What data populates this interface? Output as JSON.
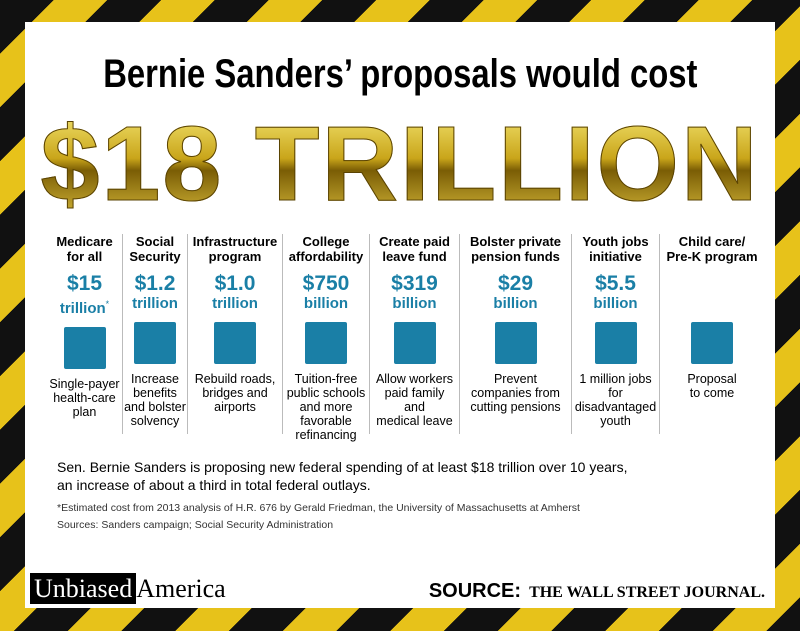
{
  "header": {
    "title": "Bernie Sanders’ proposals would cost",
    "headline": "$18 TRILLION"
  },
  "columns": [
    {
      "heading": [
        "Medicare",
        "for all"
      ],
      "amount": "$15",
      "unit": "trillion",
      "note": "*",
      "description": [
        "Single-payer",
        "health-care",
        "plan"
      ]
    },
    {
      "heading": [
        "Social",
        "Security"
      ],
      "amount": "$1.2",
      "unit": "trillion",
      "description": [
        "Increase",
        "benefits",
        "and bolster",
        "solvency"
      ]
    },
    {
      "heading": [
        "Infrastructure",
        "program"
      ],
      "amount": "$1.0",
      "unit": "trillion",
      "description": [
        "Rebuild roads,",
        "bridges and",
        "airports"
      ]
    },
    {
      "heading": [
        "College",
        "affordability"
      ],
      "amount": "$750",
      "unit": "billion",
      "description": [
        "Tuition-free",
        "public schools",
        "and more",
        "favorable",
        "refinancing"
      ]
    },
    {
      "heading": [
        "Create paid",
        "leave fund"
      ],
      "amount": "$319",
      "unit": "billion",
      "description": [
        "Allow workers",
        "paid family",
        "and",
        "medical leave"
      ]
    },
    {
      "heading": [
        "Bolster private",
        "pension funds"
      ],
      "amount": "$29",
      "unit": "billion",
      "description": [
        "Prevent",
        "companies from",
        "cutting pensions"
      ]
    },
    {
      "heading": [
        "Youth jobs",
        "initiative"
      ],
      "amount": "$5.5",
      "unit": "billion",
      "description": [
        "1 million jobs for",
        "disadvantaged",
        "youth"
      ]
    },
    {
      "heading": [
        "Child care/",
        "Pre-K program"
      ],
      "description": [
        "Proposal",
        "to come"
      ]
    }
  ],
  "summary": [
    "Sen. Bernie Sanders is proposing new federal spending of at least $18 trillion over 10 years,",
    "an increase of about a third in total federal outlays."
  ],
  "footnote": "*Estimated cost from 2013 analysis of H.R. 676 by Gerald Friedman, the University of Massachusetts at Amherst",
  "sources": "Sources: Sanders campaign; Social Security Administration",
  "branding": {
    "left_boxed": "Unbiased",
    "left_plain": "America",
    "right_label": "SOURCE:",
    "right_name": "THE WALL STREET JOURNAL."
  }
}
